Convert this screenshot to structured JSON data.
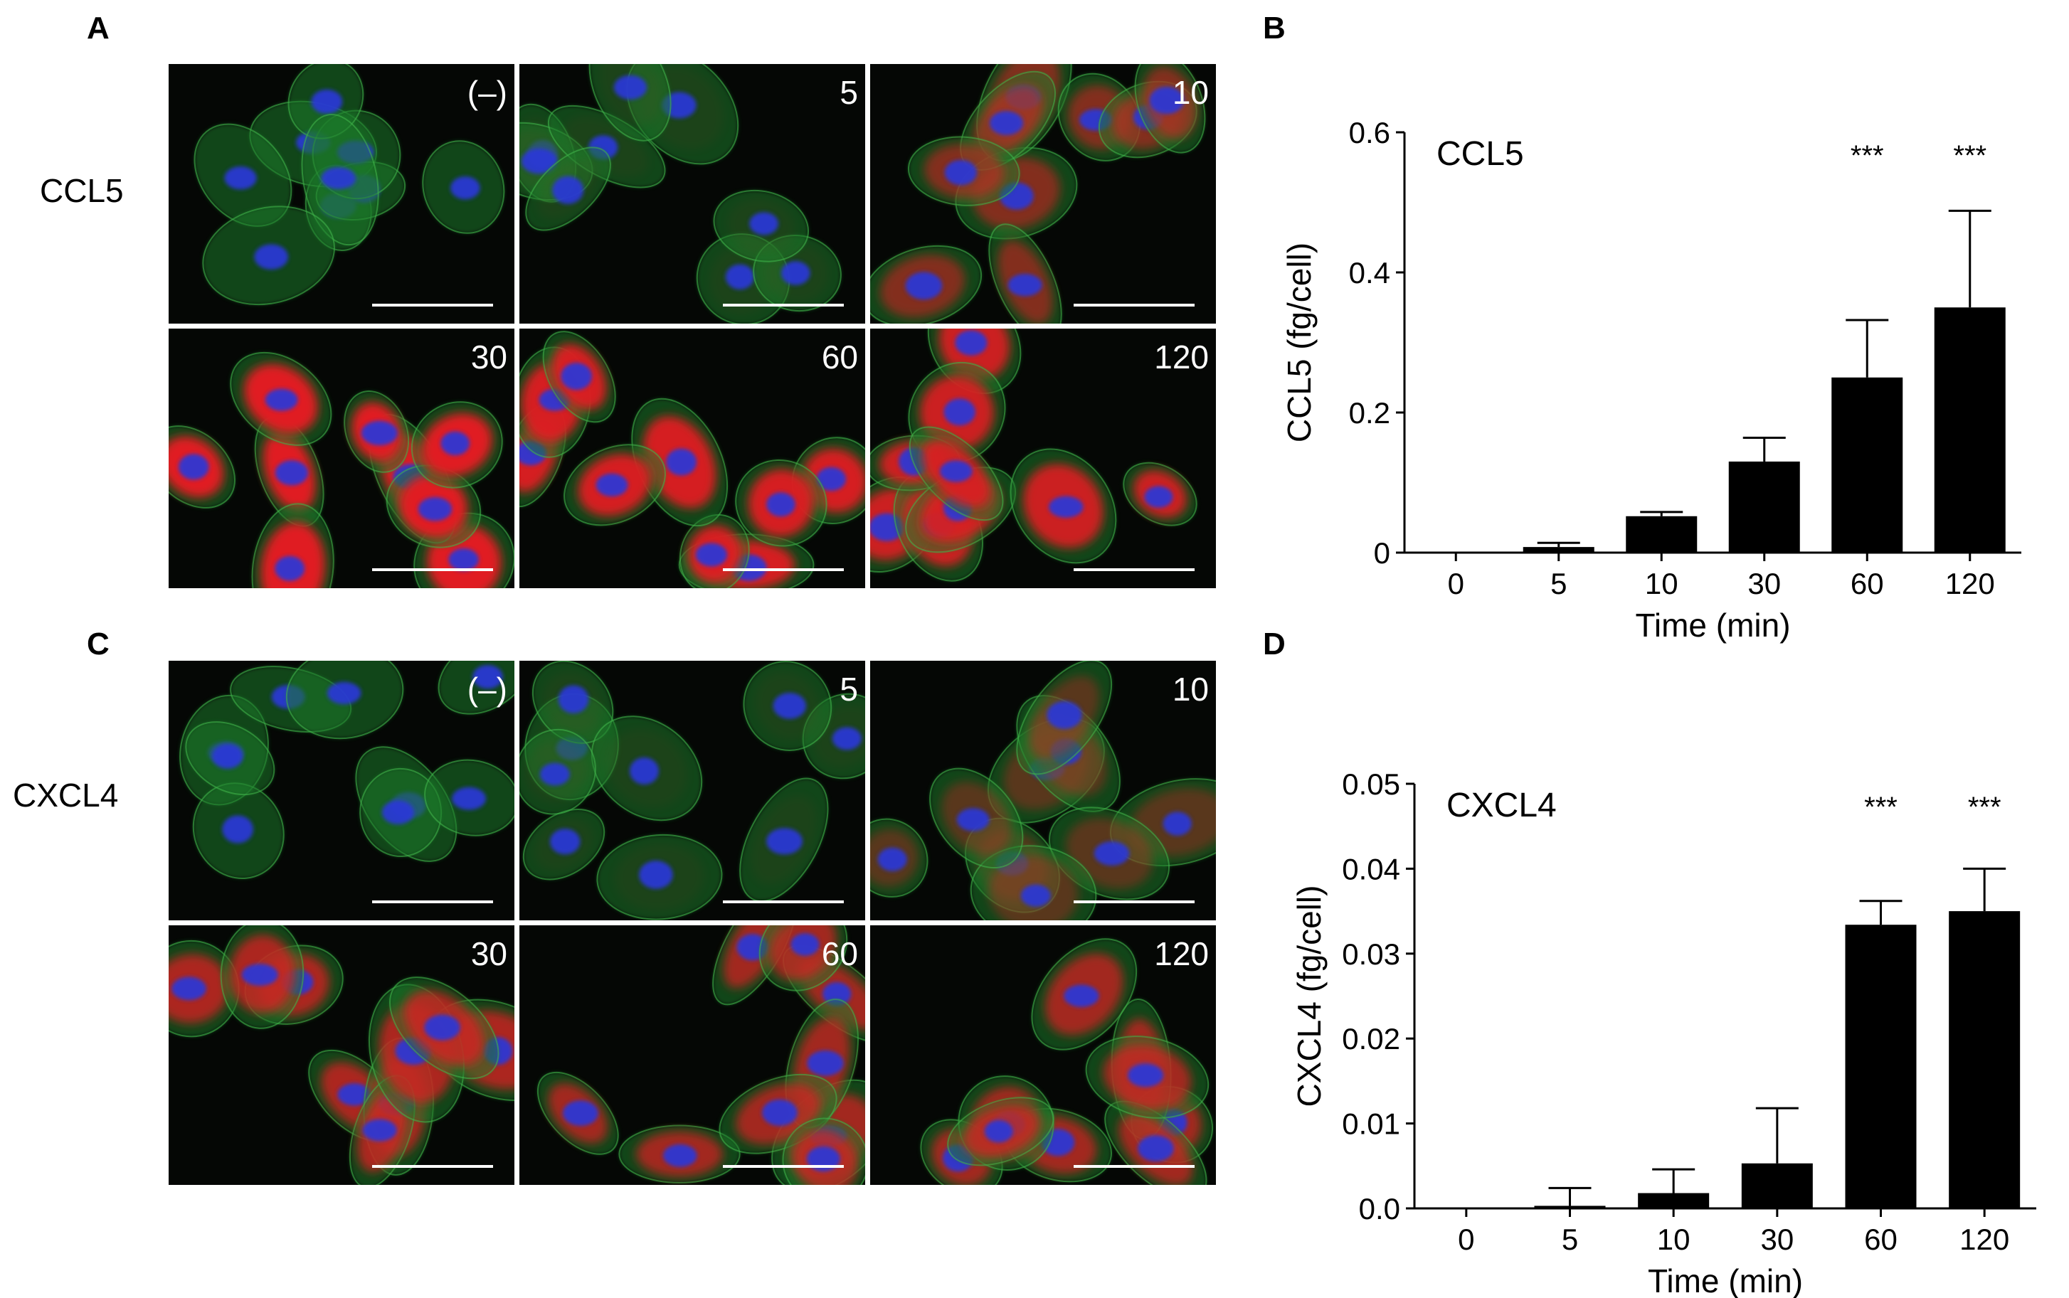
{
  "panel_letters": {
    "a": "A",
    "b": "B",
    "c": "C",
    "d": "D"
  },
  "row_labels": {
    "ccl5": "CCL5",
    "cxcl4": "CXCL4"
  },
  "micrographs": {
    "ccl5": {
      "tiles": [
        {
          "label": "(–)",
          "red_signal": 0.0
        },
        {
          "label": "5",
          "red_signal": 0.05
        },
        {
          "label": "10",
          "red_signal": 0.55
        },
        {
          "label": "30",
          "red_signal": 1.0
        },
        {
          "label": "60",
          "red_signal": 0.95
        },
        {
          "label": "120",
          "red_signal": 0.9
        }
      ]
    },
    "cxcl4": {
      "tiles": [
        {
          "label": "(–)",
          "red_signal": 0.0
        },
        {
          "label": "5",
          "red_signal": 0.05
        },
        {
          "label": "10",
          "red_signal": 0.35
        },
        {
          "label": "30",
          "red_signal": 0.75
        },
        {
          "label": "60",
          "red_signal": 0.7
        },
        {
          "label": "120",
          "red_signal": 0.7
        }
      ]
    },
    "colors": {
      "background": "#050705",
      "cytoskeleton": "#1f7a2a",
      "nucleus": "#2a37d8",
      "chemokine": "#e01a22",
      "scale_bar": "#ffffff",
      "tile_label": "#ffffff"
    }
  },
  "chart_data": [
    {
      "panel": "B",
      "type": "bar",
      "title": "CCL5",
      "xlabel": "Time (min)",
      "ylabel": "CCL5 (fg/cell)",
      "categories": [
        "0",
        "5",
        "10",
        "30",
        "60",
        "120"
      ],
      "values": [
        0.0,
        0.008,
        0.052,
        0.13,
        0.25,
        0.35
      ],
      "error_upper": [
        0.0,
        0.006,
        0.006,
        0.034,
        0.082,
        0.138
      ],
      "ylim": [
        0,
        0.6
      ],
      "yticks": [
        0,
        0.2,
        0.4,
        0.6
      ],
      "ytick_labels": [
        "0",
        "0.2",
        "0.4",
        "0.6"
      ],
      "significance": [
        "",
        "",
        "",
        "",
        "***",
        "***"
      ],
      "bar_color": "#000000",
      "grid": false
    },
    {
      "panel": "D",
      "type": "bar",
      "title": "CXCL4",
      "xlabel": "Time (min)",
      "ylabel": "CXCL4 (fg/cell)",
      "categories": [
        "0",
        "5",
        "10",
        "30",
        "60",
        "120"
      ],
      "values": [
        0.0,
        0.0003,
        0.0018,
        0.0053,
        0.0334,
        0.035
      ],
      "error_upper": [
        0.0,
        0.0021,
        0.0028,
        0.0065,
        0.0028,
        0.005
      ],
      "ylim": [
        0,
        0.05
      ],
      "yticks": [
        0,
        0.01,
        0.02,
        0.03,
        0.04,
        0.05
      ],
      "ytick_labels": [
        "0.0",
        "0.01",
        "0.02",
        "0.03",
        "0.04",
        "0.05"
      ],
      "significance": [
        "",
        "",
        "",
        "",
        "***",
        "***"
      ],
      "bar_color": "#000000",
      "grid": false
    }
  ]
}
